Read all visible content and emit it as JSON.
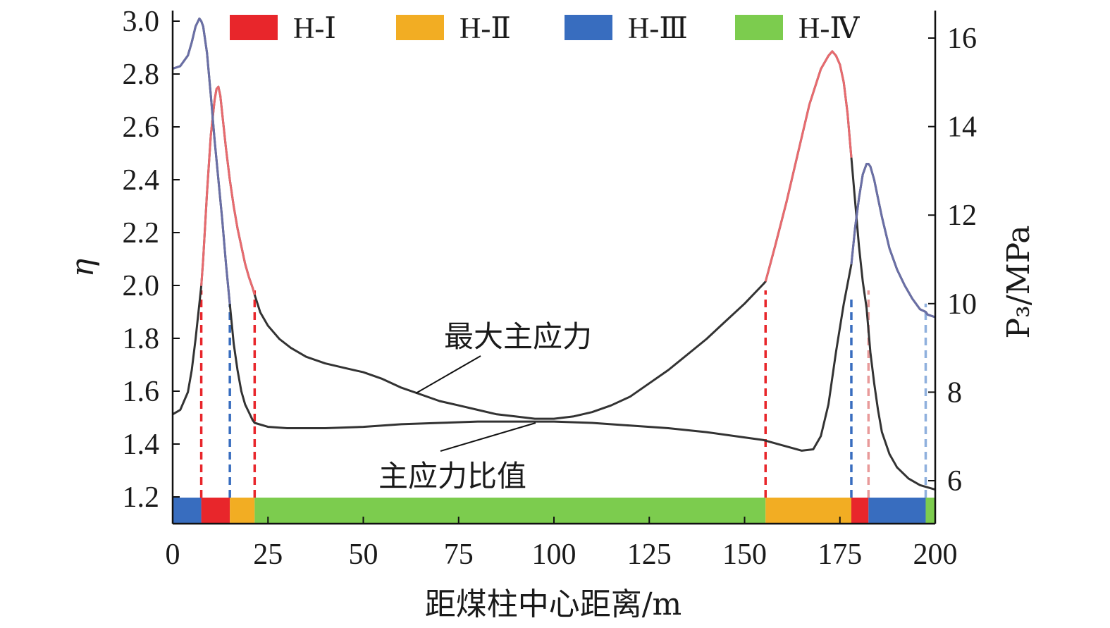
{
  "chart_data": {
    "type": "line",
    "xlabel": "距煤柱中心距离/m",
    "ylabel_left": "η",
    "ylabel_right": "P₃/MPa",
    "xlim": [
      0,
      200
    ],
    "ylim_left": [
      1.1,
      3.05
    ],
    "ylim_right": [
      5.2,
      16.6
    ],
    "x_ticks": [
      "0",
      "25",
      "50",
      "75",
      "100",
      "125",
      "150",
      "175",
      "200"
    ],
    "x_tick_values": [
      0,
      25,
      50,
      75,
      100,
      125,
      150,
      175,
      200
    ],
    "y_left_ticks": [
      "1.2",
      "1.4",
      "1.6",
      "1.8",
      "2.0",
      "2.2",
      "2.4",
      "2.6",
      "2.8",
      "3.0"
    ],
    "y_left_tick_values": [
      1.2,
      1.4,
      1.6,
      1.8,
      2.0,
      2.2,
      2.4,
      2.6,
      2.8,
      3.0
    ],
    "y_right_ticks": [
      "6",
      "8",
      "10",
      "12",
      "14",
      "16"
    ],
    "y_right_tick_values": [
      6,
      8,
      10,
      12,
      14,
      16
    ],
    "grid": false,
    "legend": {
      "placement": "top",
      "items": [
        {
          "label": "H-Ⅰ",
          "color": "#e8262b"
        },
        {
          "label": "H-Ⅱ",
          "color": "#f2ad23"
        },
        {
          "label": "H-Ⅲ",
          "color": "#386dbf"
        },
        {
          "label": "H-Ⅳ",
          "color": "#7ccc4e"
        }
      ]
    },
    "zones": [
      {
        "start": 0,
        "end": 7.5,
        "zone": "H-Ⅲ"
      },
      {
        "start": 7.5,
        "end": 15,
        "zone": "H-Ⅰ"
      },
      {
        "start": 15,
        "end": 21.5,
        "zone": "H-Ⅱ"
      },
      {
        "start": 21.5,
        "end": 155.5,
        "zone": "H-Ⅳ"
      },
      {
        "start": 155.5,
        "end": 178,
        "zone": "H-Ⅱ"
      },
      {
        "start": 178,
        "end": 182.5,
        "zone": "H-Ⅰ"
      },
      {
        "start": 182.5,
        "end": 197.5,
        "zone": "H-Ⅲ"
      },
      {
        "start": 197.5,
        "end": 200,
        "zone": "H-Ⅳ"
      }
    ],
    "boundary_markers": [
      {
        "x": 7.5,
        "y_top": 10.3,
        "color": "#e8262b"
      },
      {
        "x": 15,
        "y_top": 10,
        "color": "#386dbf"
      },
      {
        "x": 21.5,
        "y_top": 10.3,
        "color": "#e8262b"
      },
      {
        "x": 155.5,
        "y_top": 10.3,
        "color": "#e8262b"
      },
      {
        "x": 178,
        "y_top": 10.2,
        "color": "#386dbf"
      },
      {
        "x": 182.5,
        "y_top": 10.3,
        "color": "#e89a9a"
      },
      {
        "x": 197.5,
        "y_top": 10,
        "color": "#8fb0dd"
      }
    ],
    "series": [
      {
        "name": "最大主应力",
        "axis": "right",
        "x": [
          0,
          2,
          4,
          5,
          6,
          7,
          7.5,
          8,
          9,
          10,
          11,
          11.5,
          12,
          12.5,
          13,
          14,
          15,
          16,
          17,
          18,
          19,
          20,
          21,
          21.5,
          23,
          25,
          28,
          31,
          35,
          40,
          45,
          50,
          55,
          60,
          65,
          70,
          75,
          80,
          85,
          90,
          95,
          100,
          105,
          110,
          115,
          120,
          125,
          130,
          135,
          140,
          145,
          150,
          155,
          155.5,
          158,
          161,
          164,
          167,
          170,
          172,
          173,
          174,
          175,
          176,
          177,
          178,
          179,
          180,
          181,
          182,
          182.5,
          183,
          184,
          185,
          186,
          188,
          190,
          193,
          196,
          198,
          200
        ],
        "y": [
          7.5,
          7.6,
          8,
          8.5,
          9.2,
          10,
          10.4,
          11,
          12.5,
          13.8,
          14.6,
          14.85,
          14.9,
          14.7,
          14.3,
          13.5,
          12.8,
          12.2,
          11.7,
          11.3,
          10.9,
          10.6,
          10.35,
          10.2,
          9.8,
          9.5,
          9.2,
          9,
          8.8,
          8.65,
          8.55,
          8.45,
          8.3,
          8.1,
          7.95,
          7.8,
          7.7,
          7.6,
          7.5,
          7.45,
          7.4,
          7.4,
          7.45,
          7.55,
          7.7,
          7.9,
          8.2,
          8.5,
          8.85,
          9.2,
          9.6,
          10,
          10.45,
          10.5,
          11.3,
          12.3,
          13.4,
          14.5,
          15.3,
          15.6,
          15.7,
          15.6,
          15.4,
          15,
          14.3,
          13.3,
          12.3,
          11.3,
          10.5,
          9.9,
          9.4,
          8.9,
          8.2,
          7.6,
          7.1,
          6.6,
          6.3,
          6.05,
          5.9,
          5.85,
          5.8
        ]
      },
      {
        "name": "主应力比值",
        "axis": "left",
        "x": [
          0,
          2,
          4,
          5,
          6,
          7,
          7.5,
          8,
          9,
          10,
          11,
          12,
          13,
          14,
          15,
          16,
          17,
          18,
          19,
          20,
          21,
          21.5,
          25,
          30,
          40,
          50,
          60,
          70,
          80,
          90,
          100,
          110,
          120,
          130,
          140,
          150,
          155,
          160,
          165,
          168,
          170,
          172,
          174,
          176,
          178,
          179,
          180,
          181,
          182,
          182.5,
          183,
          184,
          185,
          186,
          187,
          188,
          190,
          192,
          194,
          196,
          197.5,
          198,
          200
        ],
        "y": [
          2.82,
          2.83,
          2.87,
          2.92,
          2.98,
          3.01,
          3.0,
          2.98,
          2.88,
          2.72,
          2.55,
          2.4,
          2.25,
          2.08,
          1.93,
          1.78,
          1.68,
          1.6,
          1.55,
          1.52,
          1.49,
          1.48,
          1.465,
          1.46,
          1.46,
          1.465,
          1.475,
          1.48,
          1.485,
          1.485,
          1.485,
          1.48,
          1.47,
          1.46,
          1.445,
          1.425,
          1.415,
          1.395,
          1.375,
          1.38,
          1.43,
          1.55,
          1.75,
          1.93,
          2.08,
          2.22,
          2.33,
          2.42,
          2.46,
          2.46,
          2.45,
          2.4,
          2.33,
          2.26,
          2.2,
          2.14,
          2.06,
          2.0,
          1.95,
          1.91,
          1.9,
          1.89,
          1.88
        ]
      }
    ],
    "series_styles": [
      {
        "line": "#333333",
        "highlight": "#e86a6e",
        "highlight_range": [
          7.5,
          21.5
        ],
        "highlight_range_2": [
          155.5,
          178
        ]
      },
      {
        "line": "#333333",
        "highlight": "#6a6fa6",
        "highlight_range": [
          0,
          15
        ],
        "highlight_range_2": [
          178,
          200
        ]
      }
    ],
    "annotations": [
      {
        "text": "最大主应力",
        "series": "最大主应力"
      },
      {
        "text": "主应力比值",
        "series": "主应力比值"
      }
    ]
  }
}
